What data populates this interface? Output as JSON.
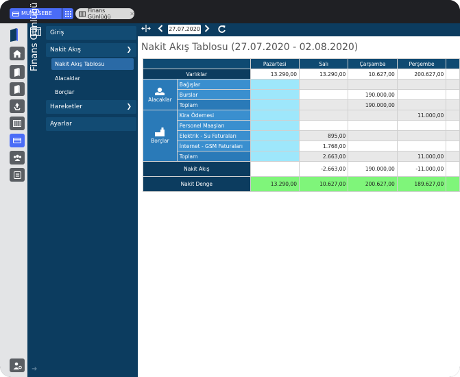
{
  "tabs": {
    "module_label": "MUHASEBE",
    "page_label": "Finans Günlüğü"
  },
  "sidebar_title": "Finans Günlüğü",
  "rail": {
    "icons": [
      "home-icon",
      "book-icon",
      "book-icon",
      "recycle-icon",
      "register-icon",
      "card-icon",
      "users-icon",
      "list-icon",
      "user-settings-icon"
    ]
  },
  "nav": {
    "items": [
      {
        "label": "Giriş"
      },
      {
        "label": "Nakit Akış"
      },
      {
        "label": "Hareketler"
      },
      {
        "label": "Ayarlar"
      }
    ],
    "sub_items": [
      {
        "label": "Nakit Akış Tablosu"
      },
      {
        "label": "Alacaklar"
      },
      {
        "label": "Borçlar"
      }
    ]
  },
  "toolbar": {
    "date": "27.07.2020"
  },
  "page_title": "Nakit Akış Tablosu  (27.07.2020 - 02.08.2020)",
  "table": {
    "columns": [
      "Pazartesi",
      "Salı",
      "Çarşamba",
      "Perşembe"
    ],
    "rows": {
      "varliklar": {
        "label": "Varlıklar",
        "values": [
          "13.290,00",
          "13.290,00",
          "10.627,00",
          "200.627,00"
        ]
      },
      "alacaklar": {
        "group_label": "Alacaklar",
        "items": [
          {
            "label": "Bağışlar",
            "values": [
              "",
              "",
              "",
              ""
            ]
          },
          {
            "label": "Burslar",
            "values": [
              "",
              "",
              "190.000,00",
              ""
            ]
          }
        ],
        "total": {
          "label": "Toplam",
          "values": [
            "",
            "",
            "190.000,00",
            ""
          ]
        }
      },
      "borclar": {
        "group_label": "Borçlar",
        "items": [
          {
            "label": "Kira Ödemesi",
            "values": [
              "",
              "",
              "",
              "11.000,00"
            ]
          },
          {
            "label": "Personel Maaşları",
            "values": [
              "",
              "",
              "",
              ""
            ]
          },
          {
            "label": "Elektrik - Su Faturaları",
            "values": [
              "",
              "895,00",
              "",
              ""
            ]
          },
          {
            "label": "İnternet - GSM Faturaları",
            "values": [
              "",
              "1.768,00",
              "",
              ""
            ]
          }
        ],
        "total": {
          "label": "Toplam",
          "values": [
            "",
            "2.663,00",
            "",
            "11.000,00"
          ]
        }
      },
      "nakit_akis": {
        "label": "Nakit Akış",
        "values": [
          "",
          "-2.663,00",
          "190.000,00",
          "-11.000,00"
        ]
      },
      "nakit_denge": {
        "label": "Nakit Denge",
        "values": [
          "13.290,00",
          "10.627,00",
          "200.627,00",
          "189.627,00"
        ]
      }
    }
  },
  "colors": {
    "accent": "#4a6cf7",
    "navy": "#0c3c5f",
    "positive_balance": "#7ff57a",
    "cyan_cell": "#9ee7fb"
  }
}
